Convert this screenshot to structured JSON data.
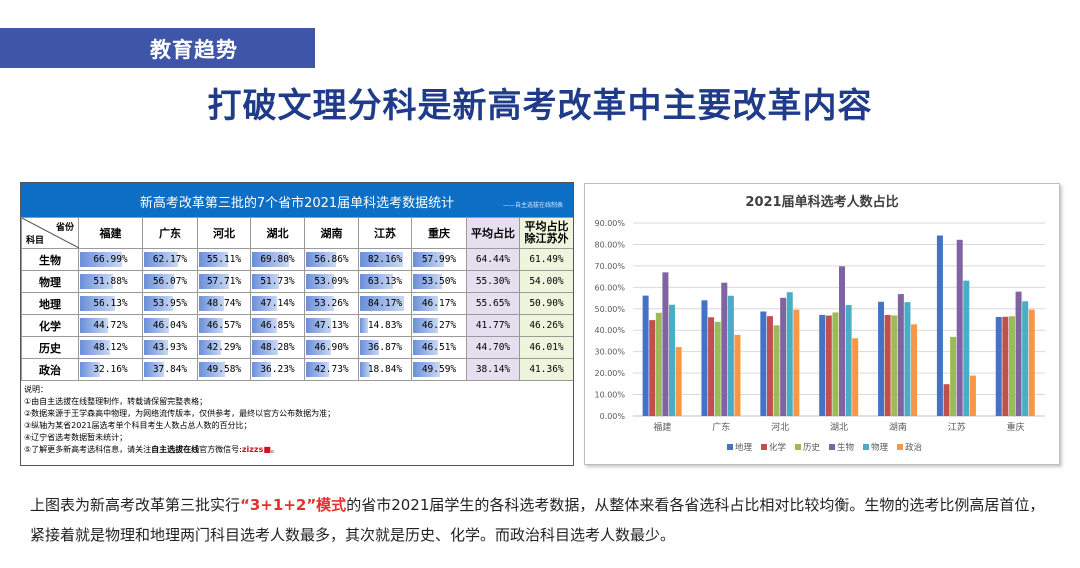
{
  "header": {
    "tag": "教育趋势",
    "title": "打破文理分科是新高考改革中主要改革内容"
  },
  "table": {
    "title": "新高考改革第三批的7个省市2021届单科选考数据统计",
    "source_note": "——自主选拔在线制表",
    "corner_top": "省份",
    "corner_bottom": "科目",
    "provinces": [
      "福建",
      "广东",
      "河北",
      "湖北",
      "湖南",
      "江苏",
      "重庆"
    ],
    "avg_label": "平均占比",
    "avg2_label_1": "平均占比",
    "avg2_label_2": "除江苏外",
    "rows": [
      {
        "subject": "生物",
        "cells": [
          {
            "t": "66.99%",
            "v": 66.99
          },
          {
            "t": "62.17%",
            "v": 62.17
          },
          {
            "t": "55.11%",
            "v": 55.11
          },
          {
            "t": "69.80%",
            "v": 69.8
          },
          {
            "t": "56.86%",
            "v": 56.86
          },
          {
            "t": "82.16%",
            "v": 82.16
          },
          {
            "t": "57.99%",
            "v": 57.99
          }
        ],
        "avg": "64.44%",
        "avg2": "61.49%"
      },
      {
        "subject": "物理",
        "cells": [
          {
            "t": "51.88%",
            "v": 51.88
          },
          {
            "t": "56.07%",
            "v": 56.07
          },
          {
            "t": "57.71%",
            "v": 57.71
          },
          {
            "t": "51.73%",
            "v": 51.73
          },
          {
            "t": "53.09%",
            "v": 53.09
          },
          {
            "t": "63.13%",
            "v": 63.13
          },
          {
            "t": "53.50%",
            "v": 53.5
          }
        ],
        "avg": "55.30%",
        "avg2": "54.00%"
      },
      {
        "subject": "地理",
        "cells": [
          {
            "t": "56.13%",
            "v": 56.13
          },
          {
            "t": "53.95%",
            "v": 53.95
          },
          {
            "t": "48.74%",
            "v": 48.74
          },
          {
            "t": "47.14%",
            "v": 47.14
          },
          {
            "t": "53.26%",
            "v": 53.26
          },
          {
            "t": "84.17%",
            "v": 84.17
          },
          {
            "t": "46.17%",
            "v": 46.17
          }
        ],
        "avg": "55.65%",
        "avg2": "50.90%"
      },
      {
        "subject": "化学",
        "cells": [
          {
            "t": "44.72%",
            "v": 44.72
          },
          {
            "t": "46.04%",
            "v": 46.04
          },
          {
            "t": "46.57%",
            "v": 46.57
          },
          {
            "t": "46.85%",
            "v": 46.85
          },
          {
            "t": "47.13%",
            "v": 47.13
          },
          {
            "t": "14.83%",
            "v": 14.83
          },
          {
            "t": "46.27%",
            "v": 46.27
          }
        ],
        "avg": "41.77%",
        "avg2": "46.26%"
      },
      {
        "subject": "历史",
        "cells": [
          {
            "t": "48.12%",
            "v": 48.12
          },
          {
            "t": "43.93%",
            "v": 43.93
          },
          {
            "t": "42.29%",
            "v": 42.29
          },
          {
            "t": "48.28%",
            "v": 48.28
          },
          {
            "t": "46.90%",
            "v": 46.9
          },
          {
            "t": "36.87%",
            "v": 36.87
          },
          {
            "t": "46.51%",
            "v": 46.51
          }
        ],
        "avg": "44.70%",
        "avg2": "46.01%"
      },
      {
        "subject": "政治",
        "cells": [
          {
            "t": "32.16%",
            "v": 32.16
          },
          {
            "t": "37.84%",
            "v": 37.84
          },
          {
            "t": "49.58%",
            "v": 49.58
          },
          {
            "t": "36.23%",
            "v": 36.23
          },
          {
            "t": "42.73%",
            "v": 42.73
          },
          {
            "t": "18.84%",
            "v": 18.84
          },
          {
            "t": "49.59%",
            "v": 49.59
          }
        ],
        "avg": "38.14%",
        "avg2": "41.36%"
      }
    ],
    "notes": {
      "heading": "说明：",
      "n1": "①由自主选拔在线整理制作，转载请保留完整表格；",
      "n2": "②数据来源于王学森高中物理，为网络流传版本，仅供参考，最终以官方公布数据为准；",
      "n3": "③纵轴为某省2021届选考单个科目考生人数占总人数的百分比；",
      "n4": "④辽宁省选考数据暂未统计；",
      "n5_pre": "⑤了解更多新高考选科信息，请关注",
      "n5_bold": "自主选拔在线",
      "n5_mid": "官方微信号:",
      "n5_red": "zizzs",
      "n5_end": "。"
    }
  },
  "chart_data": {
    "type": "bar",
    "title": "2021届单科选考人数占比",
    "categories": [
      "福建",
      "广东",
      "河北",
      "湖北",
      "湖南",
      "江苏",
      "重庆"
    ],
    "series": [
      {
        "name": "地理",
        "color": "#4472c4",
        "values": [
          56.13,
          53.95,
          48.74,
          47.14,
          53.26,
          84.17,
          46.17
        ]
      },
      {
        "name": "化学",
        "color": "#c0504d",
        "values": [
          44.72,
          46.04,
          46.57,
          46.85,
          47.13,
          14.83,
          46.27
        ]
      },
      {
        "name": "历史",
        "color": "#9bbb59",
        "values": [
          48.12,
          43.93,
          42.29,
          48.28,
          46.9,
          36.87,
          46.51
        ]
      },
      {
        "name": "生物",
        "color": "#8064a2",
        "values": [
          66.99,
          62.17,
          55.11,
          69.8,
          56.86,
          82.16,
          57.99
        ]
      },
      {
        "name": "物理",
        "color": "#4bacc6",
        "values": [
          51.88,
          56.07,
          57.71,
          51.73,
          53.09,
          63.13,
          53.5
        ]
      },
      {
        "name": "政治",
        "color": "#f79646",
        "values": [
          32.16,
          37.84,
          49.58,
          36.23,
          42.73,
          18.84,
          49.59
        ]
      }
    ],
    "ylim": [
      0,
      90
    ],
    "yticks": [
      "0.00%",
      "10.00%",
      "20.00%",
      "30.00%",
      "40.00%",
      "50.00%",
      "60.00%",
      "70.00%",
      "80.00%",
      "90.00%"
    ],
    "grid": true,
    "legend": "bottom"
  },
  "paragraph": {
    "pre": "上图表为新高考改革第三批实行",
    "highlight": "“3+1+2”模式",
    "post": "的省市2021届学生的各科选考数据，从整体来看各省选科占比相对比较均衡。生物的选考比例高居首位， 紧接着就是物理和地理两门科目选考人数最多，其次就是历史、化学。而政治科目选考人数最少。"
  }
}
